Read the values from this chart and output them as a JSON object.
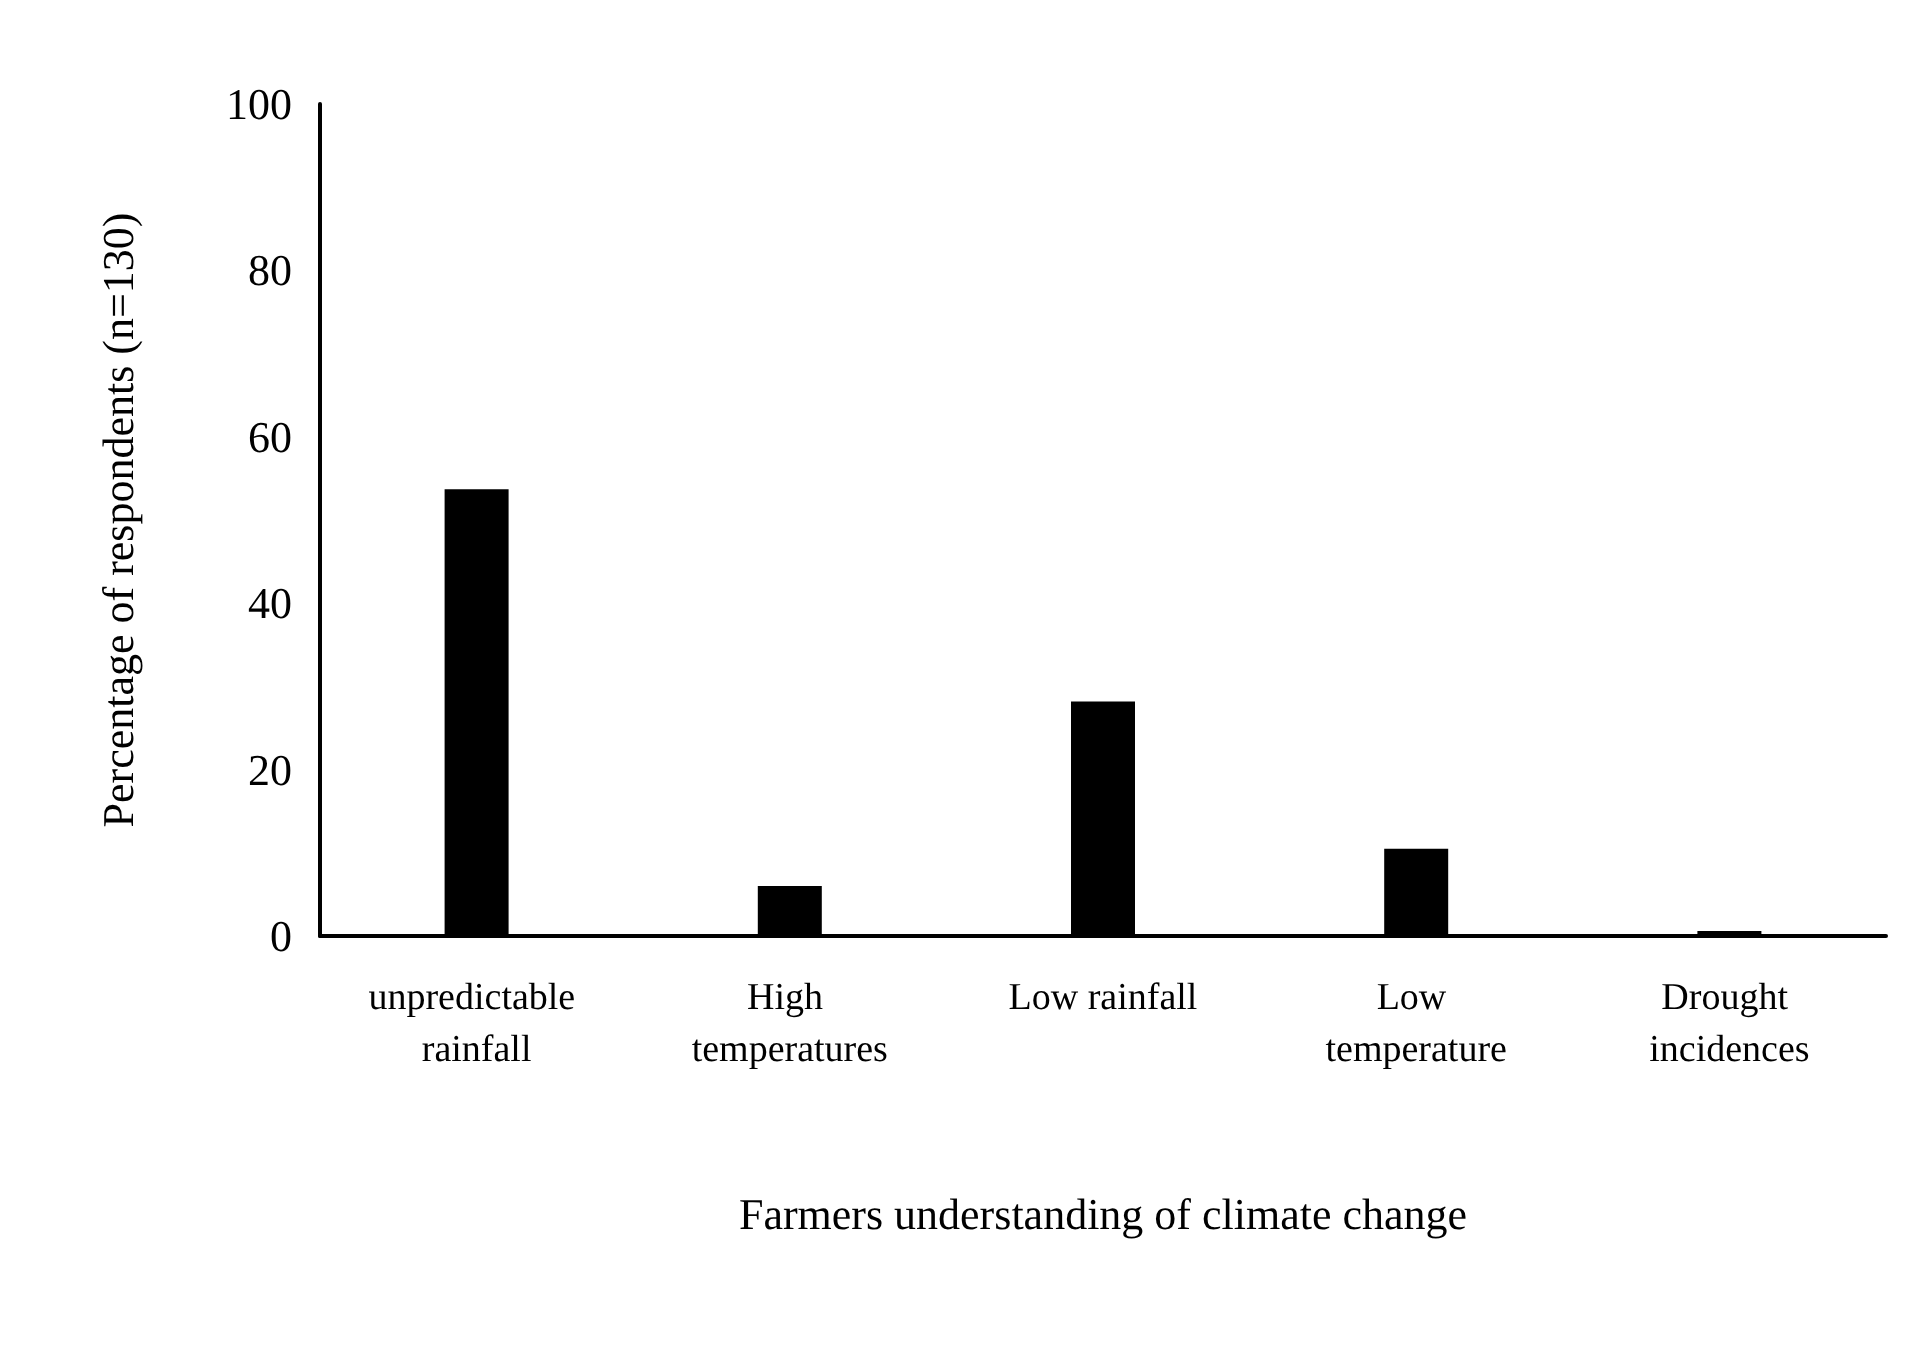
{
  "chart_data": {
    "type": "bar",
    "xlabel": "Farmers understanding of climate change",
    "ylabel": "Percentage of respondents (n=130)",
    "categories": [
      "unpredictable rainfall",
      "High temperatures",
      "Low rainfall",
      "Low temperature",
      "Drought incidences"
    ],
    "values": [
      53.7,
      6.0,
      28.2,
      10.5,
      0.6
    ],
    "color": "#000000",
    "ylim": [
      0,
      100
    ],
    "yticks": [
      0,
      20,
      40,
      60,
      80,
      100
    ]
  }
}
